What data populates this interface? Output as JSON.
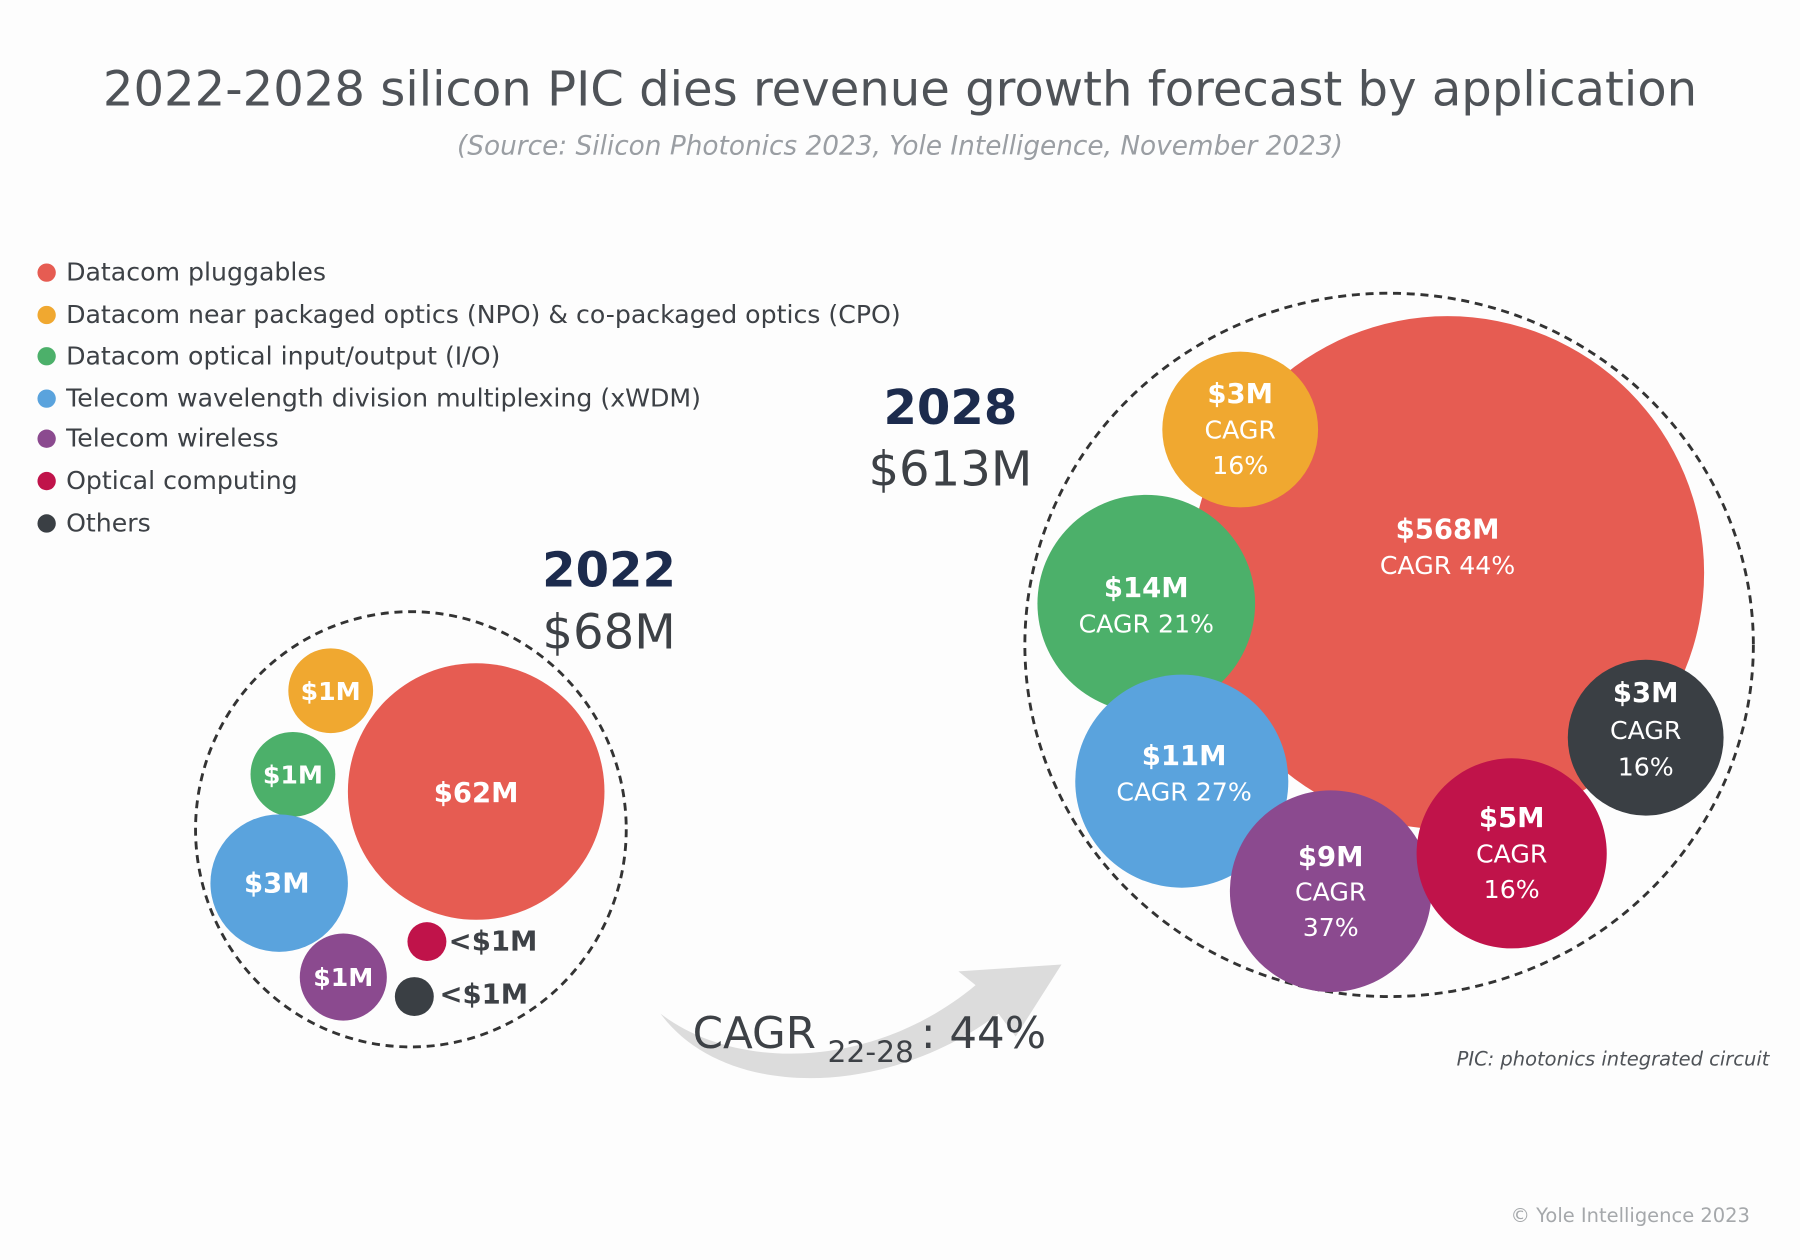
{
  "chart_data": {
    "type": "bubble",
    "title": "2022-2028 silicon PIC dies revenue growth forecast by application",
    "subtitle": "(Source: Silicon Photonics 2023, Yole Intelligence, November 2023)",
    "legend": {
      "placement": "top-left",
      "entries": [
        {
          "name": "Datacom pluggables",
          "color": "#e65c52"
        },
        {
          "name": "Datacom near packaged optics (NPO) & co-packaged optics (CPO)",
          "color": "#f0a830"
        },
        {
          "name": "Datacom optical input/output  (I/O)",
          "color": "#4cb06a"
        },
        {
          "name": "Telecom wavelength division multiplexing (xWDM)",
          "color": "#5aa3dd"
        },
        {
          "name": "Telecom wireless",
          "color": "#8b4a8f"
        },
        {
          "name": "Optical computing",
          "color": "#c0134a"
        },
        {
          "name": "Others",
          "color": "#3a3f44"
        }
      ]
    },
    "years": [
      {
        "year": "2022",
        "total": "$68M",
        "bubbles": [
          {
            "category": "Datacom pluggables",
            "label": "$62M",
            "value": 62
          },
          {
            "category": "Datacom NPO & CPO",
            "label": "$1M",
            "value": 1
          },
          {
            "category": "Datacom optical I/O",
            "label": "$1M",
            "value": 1
          },
          {
            "category": "Telecom xWDM",
            "label": "$3M",
            "value": 3
          },
          {
            "category": "Telecom wireless",
            "label": "$1M",
            "value": 1
          },
          {
            "category": "Optical computing",
            "label": "<$1M",
            "value": 0.5
          },
          {
            "category": "Others",
            "label": "<$1M",
            "value": 0.5
          }
        ]
      },
      {
        "year": "2028",
        "total": "$613M",
        "bubbles": [
          {
            "category": "Datacom pluggables",
            "label": "$568M",
            "cagr": "CAGR 44%",
            "value": 568
          },
          {
            "category": "Datacom NPO & CPO",
            "label": "$3M",
            "cagr_a": "CAGR",
            "cagr_b": "16%",
            "value": 3
          },
          {
            "category": "Datacom optical I/O",
            "label": "$14M",
            "cagr": "CAGR 21%",
            "value": 14
          },
          {
            "category": "Telecom xWDM",
            "label": "$11M",
            "cagr": "CAGR 27%",
            "value": 11
          },
          {
            "category": "Telecom wireless",
            "label": "$9M",
            "cagr_a": "CAGR",
            "cagr_b": "37%",
            "value": 9
          },
          {
            "category": "Optical computing",
            "label": "$5M",
            "cagr_a": "CAGR",
            "cagr_b": "16%",
            "value": 5
          },
          {
            "category": "Others",
            "label": "$3M",
            "cagr_a": "CAGR",
            "cagr_b": "16%",
            "value": 3
          }
        ]
      }
    ],
    "overall_cagr": {
      "prefix": "CAGR",
      "sub": "22-28",
      "value": ": 44%"
    },
    "footnote": "PIC: photonics integrated circuit",
    "copyright": "© Yole Intelligence 2023"
  }
}
